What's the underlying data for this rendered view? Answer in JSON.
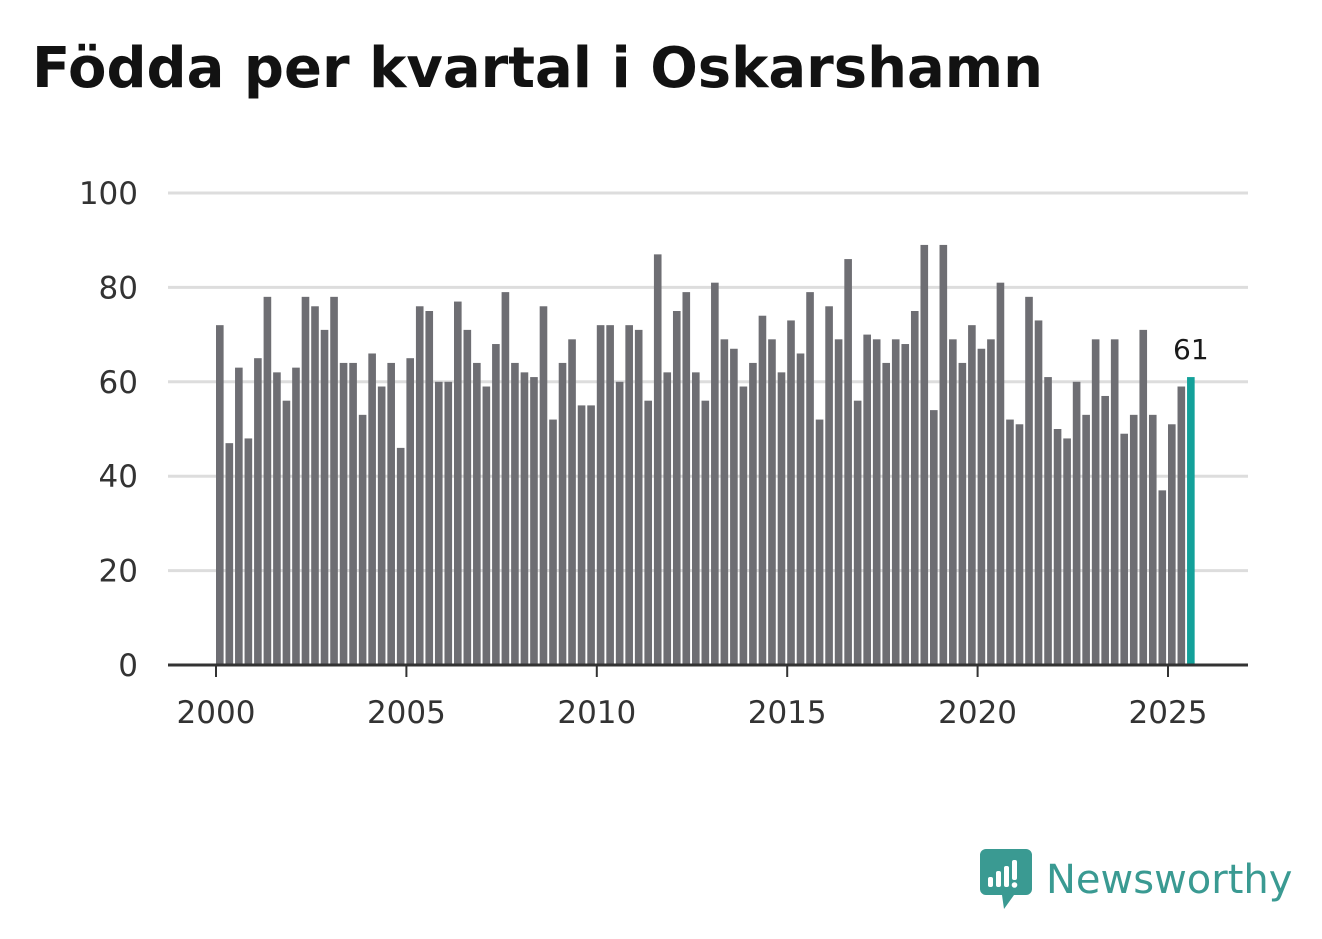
{
  "title": "Födda per kvartal i Oskarshamn",
  "brand": {
    "name": "Newsworthy",
    "icon": "newsworthy-logo-icon"
  },
  "colors": {
    "bar": "#6e6e73",
    "highlight": "#13a19a",
    "grid": "#dddddd",
    "axis": "#333333",
    "brand": "#3a9a92"
  },
  "chart_data": {
    "type": "bar",
    "title": "Födda per kvartal i Oskarshamn",
    "xlabel": "",
    "ylabel": "",
    "ylim": [
      0,
      100
    ],
    "yticks": [
      0,
      20,
      40,
      60,
      80,
      100
    ],
    "xticks": [
      2000,
      2005,
      2010,
      2015,
      2020,
      2025
    ],
    "x_range": [
      2000.0,
      2026.5
    ],
    "grid": true,
    "start_year": 2000,
    "periods_per_year": 4,
    "values": [
      72,
      47,
      63,
      48,
      65,
      78,
      62,
      56,
      63,
      78,
      76,
      71,
      78,
      64,
      64,
      53,
      66,
      59,
      64,
      46,
      65,
      76,
      75,
      60,
      60,
      77,
      71,
      64,
      59,
      68,
      79,
      64,
      62,
      61,
      76,
      52,
      64,
      69,
      55,
      55,
      72,
      72,
      60,
      72,
      71,
      56,
      87,
      62,
      75,
      79,
      62,
      56,
      81,
      69,
      67,
      59,
      64,
      74,
      69,
      62,
      73,
      66,
      79,
      52,
      76,
      69,
      86,
      56,
      70,
      69,
      64,
      69,
      68,
      75,
      89,
      54,
      89,
      69,
      64,
      72,
      67,
      69,
      81,
      52,
      51,
      78,
      73,
      61,
      50,
      48,
      60,
      53,
      69,
      57,
      69,
      49,
      53,
      71,
      53,
      37,
      51,
      59,
      61
    ],
    "highlight_index": 102,
    "annotations": [
      {
        "index": 102,
        "text": "61"
      }
    ]
  }
}
